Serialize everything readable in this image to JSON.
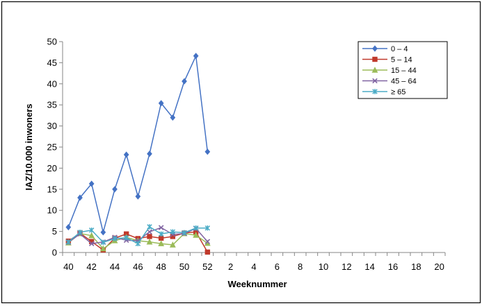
{
  "chart_data": {
    "type": "line",
    "xlabel": "Weeknummer",
    "ylabel": "IAZ/10.000 inwoners",
    "ylim": [
      0,
      50
    ],
    "yticks": [
      0,
      5,
      10,
      15,
      20,
      25,
      30,
      35,
      40,
      45,
      50
    ],
    "x_all": [
      "40",
      "41",
      "42",
      "43",
      "44",
      "45",
      "46",
      "47",
      "48",
      "49",
      "50",
      "51",
      "52",
      "1",
      "2",
      "3",
      "4",
      "5",
      "6",
      "7",
      "8",
      "9",
      "10",
      "11",
      "12",
      "13",
      "14",
      "15",
      "16",
      "17",
      "18",
      "19",
      "20"
    ],
    "x_tick_labels": [
      "40",
      "42",
      "44",
      "46",
      "48",
      "50",
      "52",
      "2",
      "4",
      "6",
      "8",
      "10",
      "12",
      "14",
      "16",
      "18",
      "20"
    ],
    "grid": false,
    "legend_position": "top-right",
    "series": [
      {
        "name": "0 – 4",
        "color": "#4472C4",
        "marker": "diamond",
        "values": [
          6.0,
          13.0,
          16.3,
          4.8,
          15.0,
          23.2,
          13.3,
          23.4,
          35.4,
          32.0,
          40.6,
          46.6,
          23.9
        ]
      },
      {
        "name": "5 – 14",
        "color": "#C0392B",
        "marker": "square",
        "values": [
          2.7,
          4.6,
          2.6,
          0.6,
          3.4,
          4.4,
          3.3,
          3.8,
          3.4,
          3.8,
          4.6,
          4.9,
          0.1
        ]
      },
      {
        "name": "15 – 44",
        "color": "#9BBB59",
        "marker": "triangle",
        "values": [
          2.3,
          4.5,
          4.0,
          0.9,
          2.8,
          3.6,
          2.8,
          2.5,
          2.1,
          1.8,
          4.5,
          4.1,
          2.2
        ]
      },
      {
        "name": "45 – 64",
        "color": "#8064A2",
        "marker": "x",
        "values": [
          2.4,
          4.4,
          2.1,
          2.5,
          3.6,
          2.9,
          2.8,
          4.9,
          5.9,
          4.3,
          4.5,
          5.7,
          2.6
        ]
      },
      {
        "name": "≥ 65",
        "color": "#4BACC6",
        "marker": "star",
        "values": [
          2.5,
          4.8,
          5.3,
          2.4,
          3.3,
          3.5,
          2.1,
          6.1,
          4.4,
          4.9,
          4.7,
          5.8,
          5.8
        ]
      }
    ]
  }
}
